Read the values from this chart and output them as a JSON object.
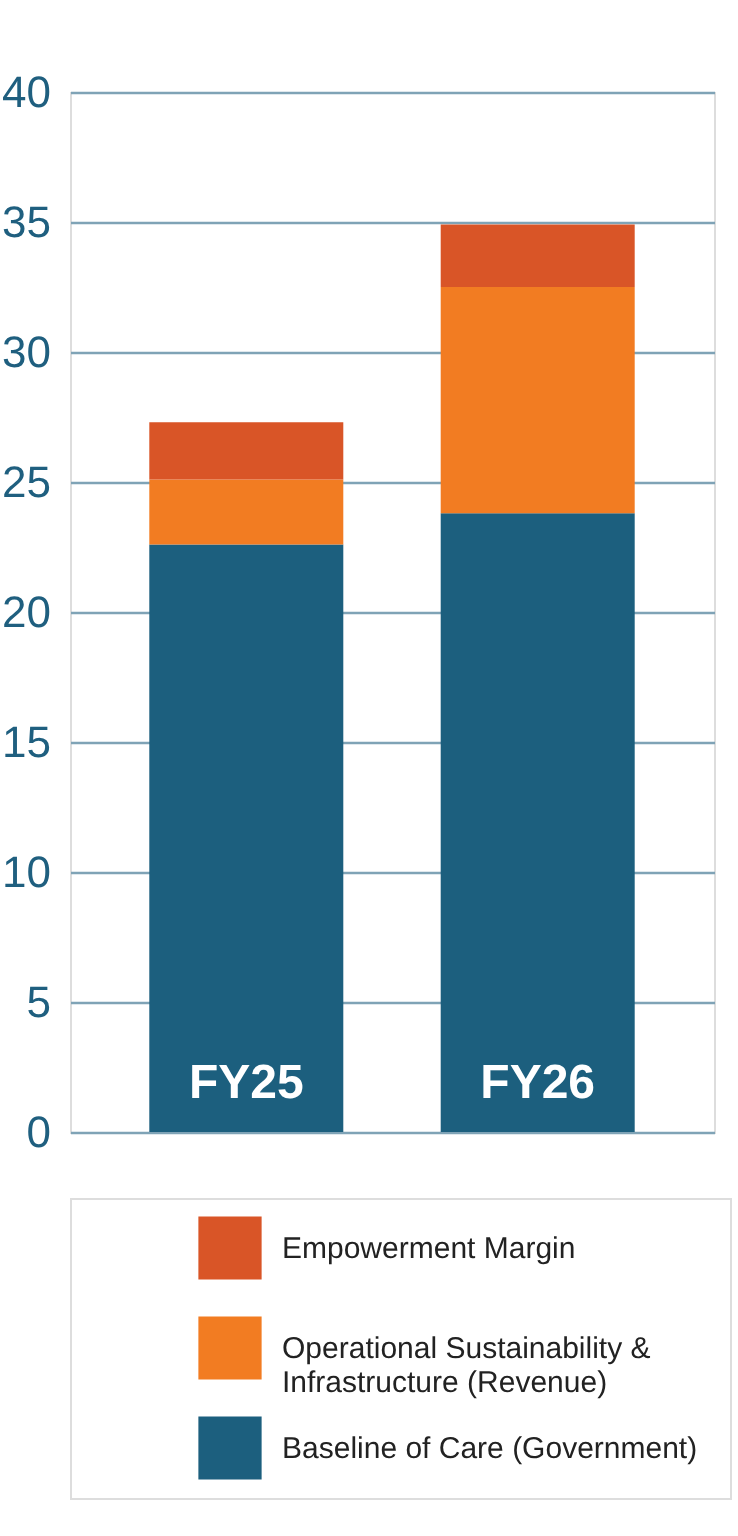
{
  "chart_data": {
    "type": "bar",
    "stacked": true,
    "categories": [
      "FY25",
      "FY26"
    ],
    "series": [
      {
        "name": "Baseline of Care (Government)",
        "color": "#1c5f7e",
        "values": [
          22.6,
          23.8
        ]
      },
      {
        "name": "Operational Sustainability & Infrastructure (Revenue)",
        "color": "#f27c22",
        "values": [
          2.5,
          8.7
        ]
      },
      {
        "name": "Empowerment Margin",
        "color": "#d95527",
        "values": [
          2.2,
          2.4
        ]
      }
    ],
    "ylim": [
      0,
      40
    ],
    "yticks": [
      0,
      5,
      10,
      15,
      20,
      25,
      30,
      35,
      40
    ],
    "grid": "y",
    "legend": "bottom"
  }
}
